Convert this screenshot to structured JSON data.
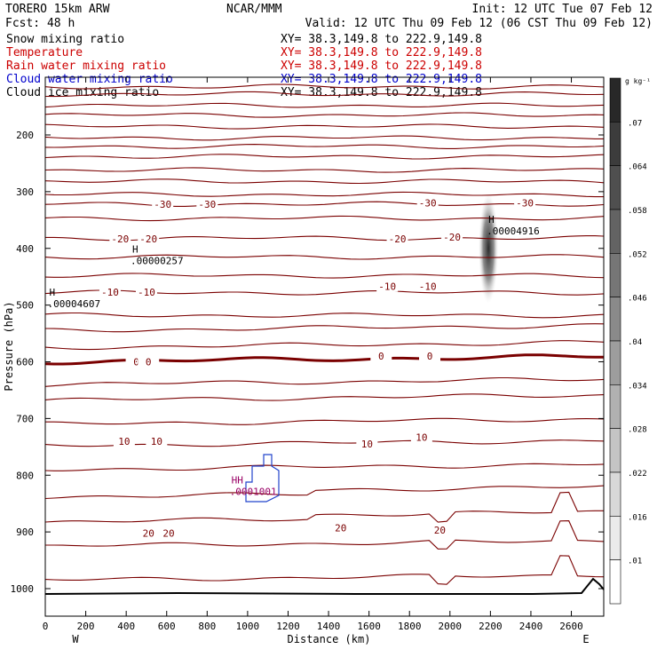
{
  "header": {
    "model": "TORERO  15km ARW",
    "org": "NCAR/MMM",
    "init": "Init: 12 UTC Tue 07 Feb 12",
    "fcst": "Fcst:   48 h",
    "valid": "Valid: 12 UTC Thu 09 Feb 12 (06 CST Thu 09 Feb 12)"
  },
  "legend": [
    {
      "label": "Snow mixing ratio",
      "xy": "XY=  38.3,149.8 to 222.9,149.8",
      "color": "#000000",
      "xy_color": "#000000"
    },
    {
      "label": "Temperature",
      "xy": "XY=  38.3,149.8 to 222.9,149.8",
      "color": "#cc0000",
      "xy_color": "#cc0000"
    },
    {
      "label": "Rain water mixing ratio",
      "xy": "XY=  38.3,149.8 to 222.9,149.8",
      "color": "#cc0000",
      "xy_color": "#cc0000"
    },
    {
      "label": "Cloud water mixing ratio",
      "xy": "XY=  38.3,149.8 to 222.9,149.8",
      "color": "#0000cc",
      "xy_color": "#0000cc"
    },
    {
      "label": "Cloud ice mixing ratio",
      "xy": "XY=  38.3,149.8 to 222.9,149.8",
      "color": "#000000",
      "xy_color": "#000000"
    }
  ],
  "chart_data": {
    "type": "cross-section",
    "xlabel": "Distance (km)",
    "ylabel": "Pressure (hPa)",
    "xlim": [
      0,
      2760
    ],
    "ylim": [
      1050,
      100
    ],
    "x_ticks": [
      0,
      200,
      400,
      600,
      800,
      1000,
      1200,
      1400,
      1600,
      1800,
      2000,
      2200,
      2400,
      2600
    ],
    "y_ticks": [
      200,
      300,
      400,
      500,
      600,
      700,
      800,
      900,
      1000
    ],
    "x_ends": {
      "left": "W",
      "right": "E"
    },
    "colorbar": {
      "unit": "g kg⁻¹",
      "levels": [
        0.07,
        0.064,
        0.058,
        0.052,
        0.046,
        0.04,
        0.034,
        0.028,
        0.022,
        0.016,
        0.01
      ],
      "labels": [
        ".07",
        ".064",
        ".058",
        ".052",
        ".046",
        ".04",
        ".034",
        ".028",
        ".022",
        ".016",
        ".01"
      ]
    },
    "isotherm_pressures": [
      115,
      128,
      148,
      165,
      185,
      205,
      220,
      238,
      262,
      282,
      305,
      322,
      347,
      382,
      415,
      448,
      478,
      518,
      545,
      575,
      600,
      640,
      668,
      710,
      748,
      790,
      838,
      882,
      925,
      985
    ],
    "freezing_level_hPa": 600,
    "temperature_labels": [
      {
        "text": "-30",
        "x": 580,
        "p": 322
      },
      {
        "text": "-30",
        "x": 800,
        "p": 322
      },
      {
        "text": "-30",
        "x": 1890,
        "p": 320
      },
      {
        "text": "-30",
        "x": 2370,
        "p": 320
      },
      {
        "text": "-20",
        "x": 370,
        "p": 383
      },
      {
        "text": "-20",
        "x": 510,
        "p": 383
      },
      {
        "text": "-20",
        "x": 1740,
        "p": 383
      },
      {
        "text": "-20",
        "x": 2010,
        "p": 380
      },
      {
        "text": "-10",
        "x": 320,
        "p": 477
      },
      {
        "text": "-10",
        "x": 500,
        "p": 477
      },
      {
        "text": "-10",
        "x": 1690,
        "p": 467
      },
      {
        "text": "-10",
        "x": 1890,
        "p": 467
      },
      {
        "text": "0",
        "x": 450,
        "p": 600
      },
      {
        "text": "0",
        "x": 510,
        "p": 600
      },
      {
        "text": "0",
        "x": 1660,
        "p": 590
      },
      {
        "text": "0",
        "x": 1900,
        "p": 590
      },
      {
        "text": "10",
        "x": 390,
        "p": 740
      },
      {
        "text": "10",
        "x": 550,
        "p": 740
      },
      {
        "text": "10",
        "x": 1590,
        "p": 745
      },
      {
        "text": "10",
        "x": 1860,
        "p": 733
      },
      {
        "text": "20",
        "x": 510,
        "p": 902
      },
      {
        "text": "20",
        "x": 610,
        "p": 902
      },
      {
        "text": "20",
        "x": 1460,
        "p": 893
      },
      {
        "text": "20",
        "x": 1950,
        "p": 897
      }
    ],
    "extrema": [
      {
        "mark": "H",
        "value": ".00004916",
        "x": 2190,
        "p": 360
      },
      {
        "mark": "H",
        "value": ".00000257",
        "x": 430,
        "p": 412
      },
      {
        "mark": "H",
        "value": ".00004607",
        "x": 20,
        "p": 488
      },
      {
        "mark": "HH",
        "value": ".0001001",
        "x": 920,
        "p": 819
      }
    ],
    "cloud_ice_max": {
      "x": 2190,
      "p": 400,
      "value": 0.064
    }
  }
}
